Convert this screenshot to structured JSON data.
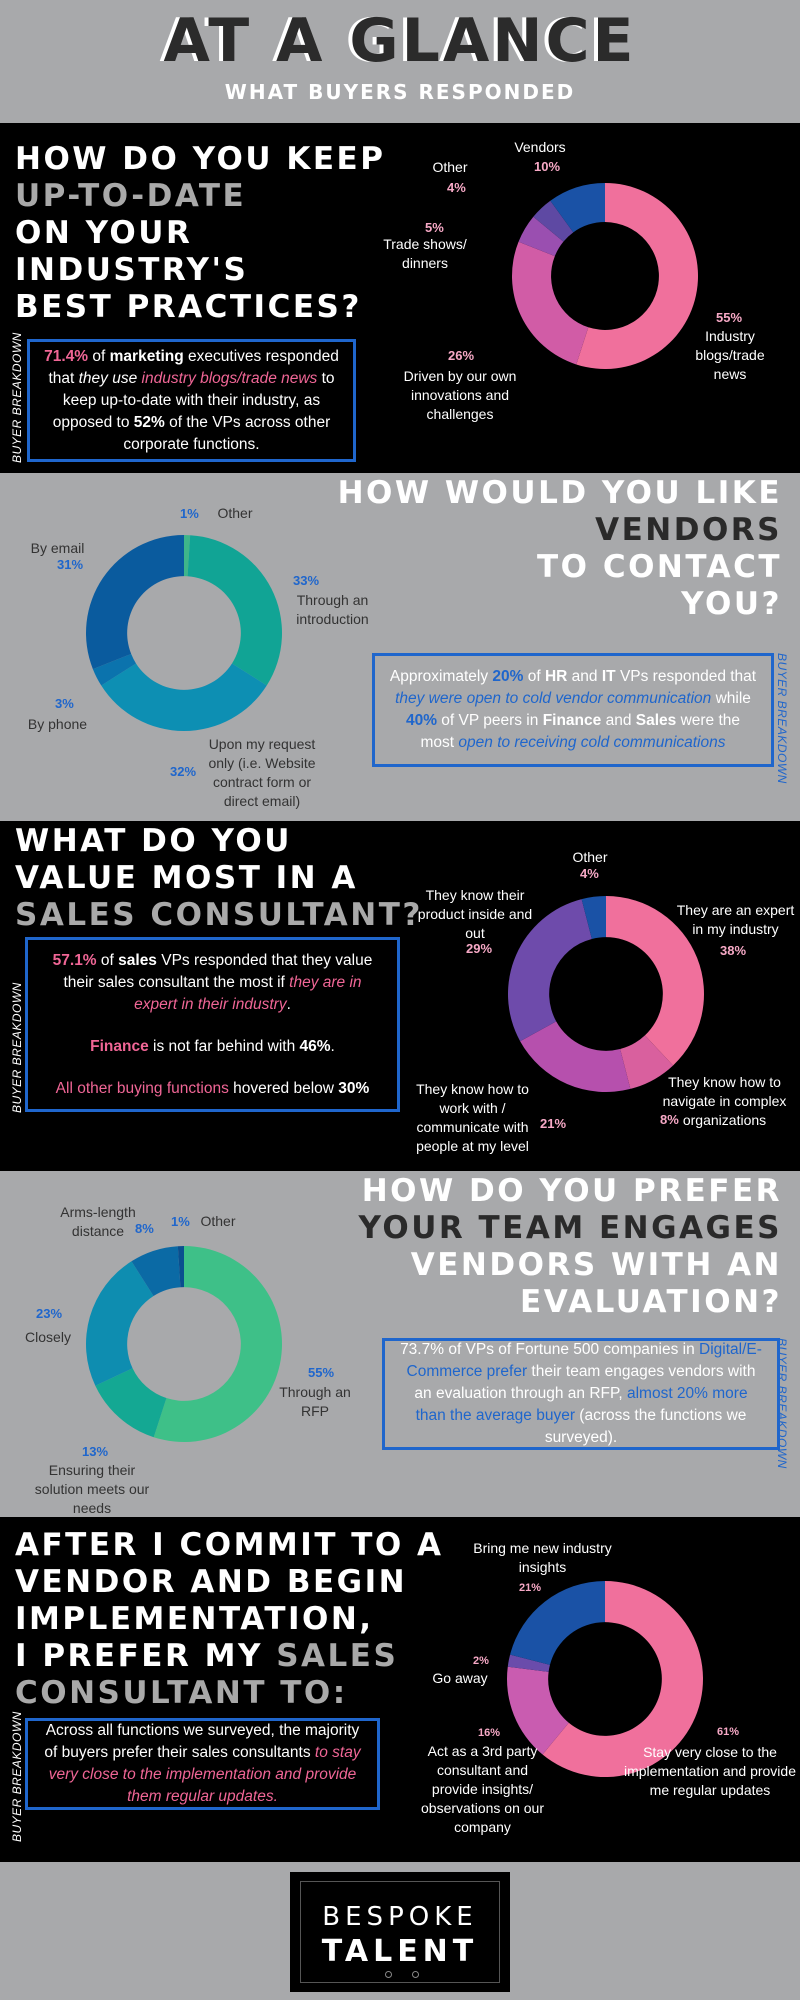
{
  "header": {
    "title": "AT A GLANCE",
    "subtitle": "WHAT BUYERS RESPONDED"
  },
  "buyer_breakdown": "BUYER BREAKDOWN",
  "q1": {
    "lines": [
      "HOW DO YOU KEEP",
      "UP-TO-DATE",
      "ON YOUR",
      "INDUSTRY'S",
      "BEST PRACTICES?"
    ],
    "box": {
      "p1": "71.4%",
      "p2": " of ",
      "p3": "marketing",
      "p4": " executives responded that ",
      "p5": "they use",
      "p6": " industry blogs/trade news",
      "p7": " to keep up-to-date with their industry, as opposed to ",
      "p8": "52%",
      "p9": " of the VPs across other corporate functions."
    }
  },
  "q2": {
    "lines": [
      "HOW WOULD YOU LIKE",
      "VENDORS",
      "TO CONTACT",
      "YOU?"
    ],
    "box": {
      "p1": "Approximately ",
      "p2": "20%",
      "p3": " of ",
      "p4": "HR",
      "p5": " and ",
      "p6": "IT",
      "p7": " VPs responded that ",
      "p8": "they were open to cold vendor communication",
      "p9": " while ",
      "p10": "40%",
      "p11": " of VP peers in ",
      "p12": "Finance",
      "p13": " and ",
      "p14": "Sales",
      "p15": " were the most ",
      "p16": "open to receiving cold communications"
    }
  },
  "q3": {
    "lines": [
      "WHAT DO YOU",
      "VALUE MOST IN A",
      "SALES CONSULTANT?"
    ],
    "box": {
      "a1": "57.1%",
      "a2": " of ",
      "a3": "sales",
      "a4": " VPs responded that they value their sales consultant the most if ",
      "a5": "they are in expert in their industry",
      "a6": ".",
      "b1": "Finance",
      "b2": " is not far behind with ",
      "b3": "46%",
      "b4": ".",
      "c1": "All other buying functions",
      "c2": " hovered below ",
      "c3": "30%"
    }
  },
  "q4": {
    "lines": [
      "HOW DO YOU PREFER",
      "YOUR TEAM ENGAGES",
      "VENDORS WITH AN",
      "EVALUATION?"
    ],
    "box": {
      "p1": "73.7% of VPs of Fortune 500 companies in ",
      "p2": "Digital/E-Commerce prefer",
      "p3": " their team engages vendors with an evaluation through an RFP, ",
      "p4": "almost 20% more than the average buyer",
      "p5": " (across the functions we surveyed)."
    }
  },
  "q5": {
    "lines": [
      "AFTER I COMMIT TO A",
      "VENDOR AND BEGIN",
      "IMPLEMENTATION,",
      "I PREFER MY SALES",
      "CONSULTANT TO:"
    ],
    "box": {
      "p1": "Across all functions we surveyed, the majority of buyers prefer their sales consultants ",
      "p2": "to stay very close to the implementation and provide them regular updates."
    }
  },
  "footer": {
    "brand1": "BESPOKE",
    "brand2": "TALENT"
  },
  "chart_data": [
    {
      "type": "pie",
      "donut": true,
      "title": "HOW DO YOU KEEP UP-TO-DATE ON YOUR INDUSTRY'S BEST PRACTICES?",
      "slices": [
        {
          "label": "Industry blogs/trade news",
          "value": 55,
          "color": "#f0709c"
        },
        {
          "label": "Driven by our own innovations and challenges",
          "value": 26,
          "color": "#d15ca6"
        },
        {
          "label": "Trade shows/ dinners",
          "value": 5,
          "color": "#9a4fb0"
        },
        {
          "label": "Other",
          "value": 4,
          "color": "#5e49a3"
        },
        {
          "label": "Vendors",
          "value": 10,
          "color": "#1a52a6"
        }
      ]
    },
    {
      "type": "pie",
      "donut": true,
      "title": "HOW WOULD YOU LIKE VENDORS TO CONTACT YOU?",
      "slices": [
        {
          "label": "Other",
          "value": 1,
          "color": "#3fb58a"
        },
        {
          "label": "Through an introduction",
          "value": 33,
          "color": "#11a495"
        },
        {
          "label": "Upon my request only (i.e. Website contract form or direct email)",
          "value": 32,
          "color": "#0d8fb3"
        },
        {
          "label": "By phone",
          "value": 3,
          "color": "#0b73ad"
        },
        {
          "label": "By email",
          "value": 31,
          "color": "#0a5b9e"
        }
      ]
    },
    {
      "type": "pie",
      "donut": true,
      "title": "WHAT DO YOU VALUE MOST IN A SALES CONSULTANT?",
      "slices": [
        {
          "label": "They are an expert in my industry",
          "value": 38,
          "color": "#f0709c"
        },
        {
          "label": "They know how to navigate in complex organizations",
          "value": 8,
          "color": "#d9609e"
        },
        {
          "label": "They know how to work with / communicate with people at my level",
          "value": 21,
          "color": "#b650ad"
        },
        {
          "label": "They know their product inside and out",
          "value": 29,
          "color": "#6e4bab"
        },
        {
          "label": "Other",
          "value": 4,
          "color": "#1a52a6"
        }
      ]
    },
    {
      "type": "pie",
      "donut": true,
      "title": "HOW DO YOU PREFER YOUR TEAM ENGAGES VENDORS WITH AN EVALUATION?",
      "slices": [
        {
          "label": "Through an RFP",
          "value": 55,
          "color": "#3ec088"
        },
        {
          "label": "Ensuring their solution meets our needs",
          "value": 13,
          "color": "#14a893"
        },
        {
          "label": "Closely",
          "value": 23,
          "color": "#0e8db0"
        },
        {
          "label": "Arms-length distance",
          "value": 8,
          "color": "#0b6aa5"
        },
        {
          "label": "Other",
          "value": 1,
          "color": "#0a4f8f"
        }
      ]
    },
    {
      "type": "pie",
      "donut": true,
      "title": "AFTER I COMMIT TO A VENDOR AND BEGIN IMPLEMENTATION, I PREFER MY SALES CONSULTANT TO:",
      "slices": [
        {
          "label": "Stay very close to the implementation and provide me regular updates",
          "value": 61,
          "color": "#f0709c"
        },
        {
          "label": "Act as a 3rd party consultant and provide insights/ observations on our company",
          "value": 16,
          "color": "#c95cb0"
        },
        {
          "label": "Go away",
          "value": 2,
          "color": "#6a4cab"
        },
        {
          "label": "Bring me new industry insights",
          "value": 21,
          "color": "#1a52a6"
        }
      ]
    }
  ]
}
